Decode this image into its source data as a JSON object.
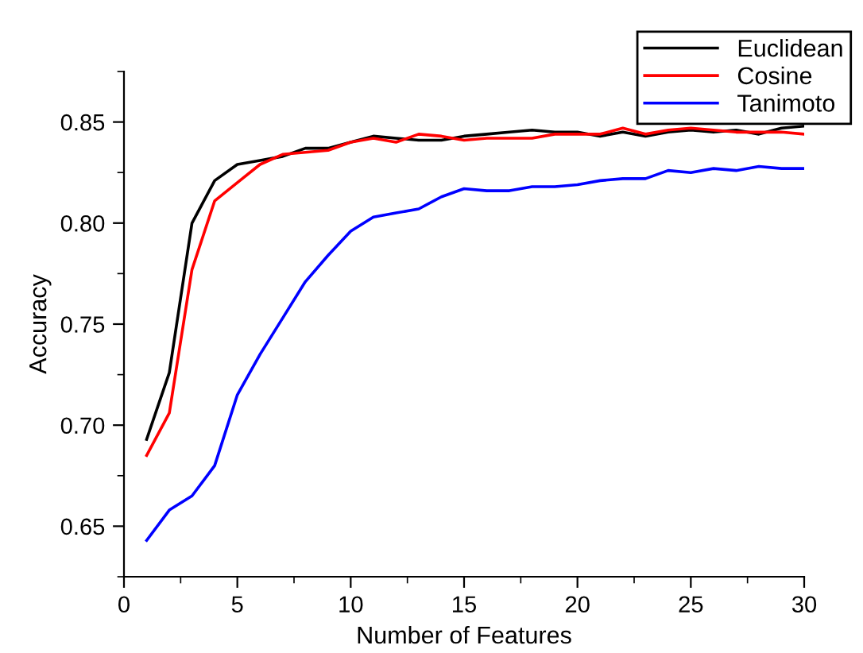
{
  "chart_data": {
    "type": "line",
    "xlabel": "Number of Features",
    "ylabel": "Accuracy",
    "x": [
      1,
      2,
      3,
      4,
      5,
      6,
      7,
      8,
      9,
      10,
      11,
      12,
      13,
      14,
      15,
      16,
      17,
      18,
      19,
      20,
      21,
      22,
      23,
      24,
      25,
      26,
      27,
      28,
      29,
      30
    ],
    "series": [
      {
        "name": "Euclidean",
        "color": "#000000",
        "values": [
          0.693,
          0.726,
          0.8,
          0.821,
          0.829,
          0.831,
          0.833,
          0.837,
          0.837,
          0.84,
          0.843,
          0.842,
          0.841,
          0.841,
          0.843,
          0.844,
          0.845,
          0.846,
          0.845,
          0.845,
          0.843,
          0.845,
          0.843,
          0.845,
          0.846,
          0.845,
          0.846,
          0.844,
          0.847,
          0.848
        ]
      },
      {
        "name": "Cosine",
        "color": "#ff0000",
        "values": [
          0.685,
          0.706,
          0.777,
          0.811,
          0.82,
          0.829,
          0.834,
          0.835,
          0.836,
          0.84,
          0.842,
          0.84,
          0.844,
          0.843,
          0.841,
          0.842,
          0.842,
          0.842,
          0.844,
          0.844,
          0.844,
          0.847,
          0.844,
          0.846,
          0.847,
          0.846,
          0.845,
          0.845,
          0.845,
          0.844
        ]
      },
      {
        "name": "Tanimoto",
        "color": "#0000ff",
        "values": [
          0.643,
          0.658,
          0.665,
          0.68,
          0.715,
          0.735,
          0.753,
          0.771,
          0.784,
          0.796,
          0.803,
          0.805,
          0.807,
          0.813,
          0.817,
          0.816,
          0.816,
          0.818,
          0.818,
          0.819,
          0.821,
          0.822,
          0.822,
          0.826,
          0.825,
          0.827,
          0.826,
          0.828,
          0.827,
          0.827
        ]
      }
    ],
    "xlim": [
      0,
      30
    ],
    "xticks": [
      0,
      5,
      10,
      15,
      20,
      25,
      30
    ],
    "ylim": [
      0.625,
      0.875
    ],
    "yticks": [
      {
        "value": 0.65,
        "label": "0.65"
      },
      {
        "value": 0.7,
        "label": "0.70"
      },
      {
        "value": 0.75,
        "label": "0.75"
      },
      {
        "value": 0.8,
        "label": "0.80"
      },
      {
        "value": 0.85,
        "label": "0.85"
      }
    ],
    "grid": false,
    "legend": "top right",
    "marker": "none",
    "line_style": "solid"
  }
}
